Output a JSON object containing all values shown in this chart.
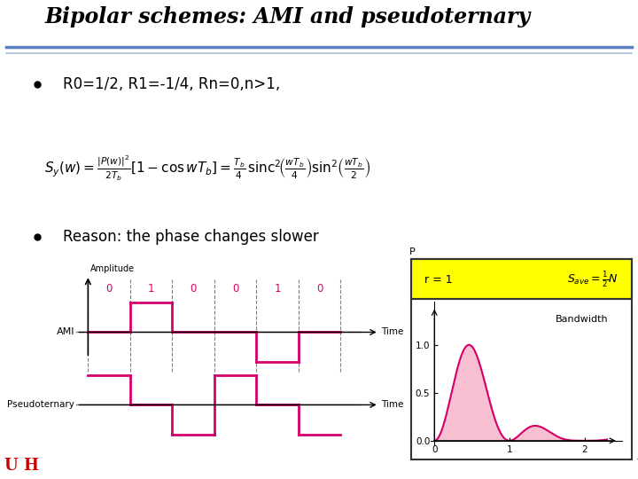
{
  "title": "Bipolar schemes: AMI and pseudoternary",
  "bullet1": "R0=1/2, R1=-1/4, Rn=0,n>1,",
  "bullet2": "Reason: the phase changes slower",
  "bg_color": "#ffffff",
  "title_color": "#000000",
  "magenta": "#d4006a",
  "ami_label": "AMI",
  "pseudo_label": "Pseudoternary",
  "time_label": "Time",
  "amplitude_label": "Amplitude",
  "bits": [
    "0",
    "1",
    "0",
    "0",
    "1",
    "0"
  ],
  "yellow_bg": "#ffff00",
  "header_r": "r = 1",
  "bandwidth_label": "Bandwidth",
  "title_bar_color1": "#4472c4",
  "title_bar_color2": "#c0d0e8",
  "gray_line": "#888888",
  "pink_fill": "#f8b8cc"
}
